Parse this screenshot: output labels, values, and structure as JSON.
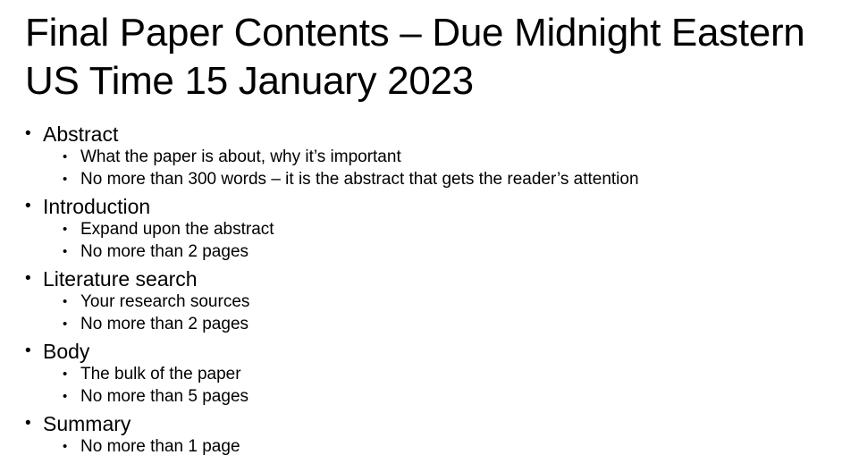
{
  "slide": {
    "title": "Final Paper Contents – Due Midnight Eastern US Time 15 January 2023",
    "bullet_glyph": "•",
    "sections": [
      {
        "heading": "Abstract",
        "items": [
          "What the paper is about, why it’s important",
          "No more than 300 words – it is the abstract that gets the reader’s attention"
        ]
      },
      {
        "heading": "Introduction",
        "items": [
          "Expand upon the abstract",
          "No more than 2 pages"
        ]
      },
      {
        "heading": "Literature search",
        "items": [
          "Your research sources",
          "No more than 2 pages"
        ]
      },
      {
        "heading": "Body",
        "items": [
          "The bulk of the paper",
          "No more than 5 pages"
        ]
      },
      {
        "heading": "Summary",
        "items": [
          "No more than 1 page"
        ]
      }
    ]
  }
}
